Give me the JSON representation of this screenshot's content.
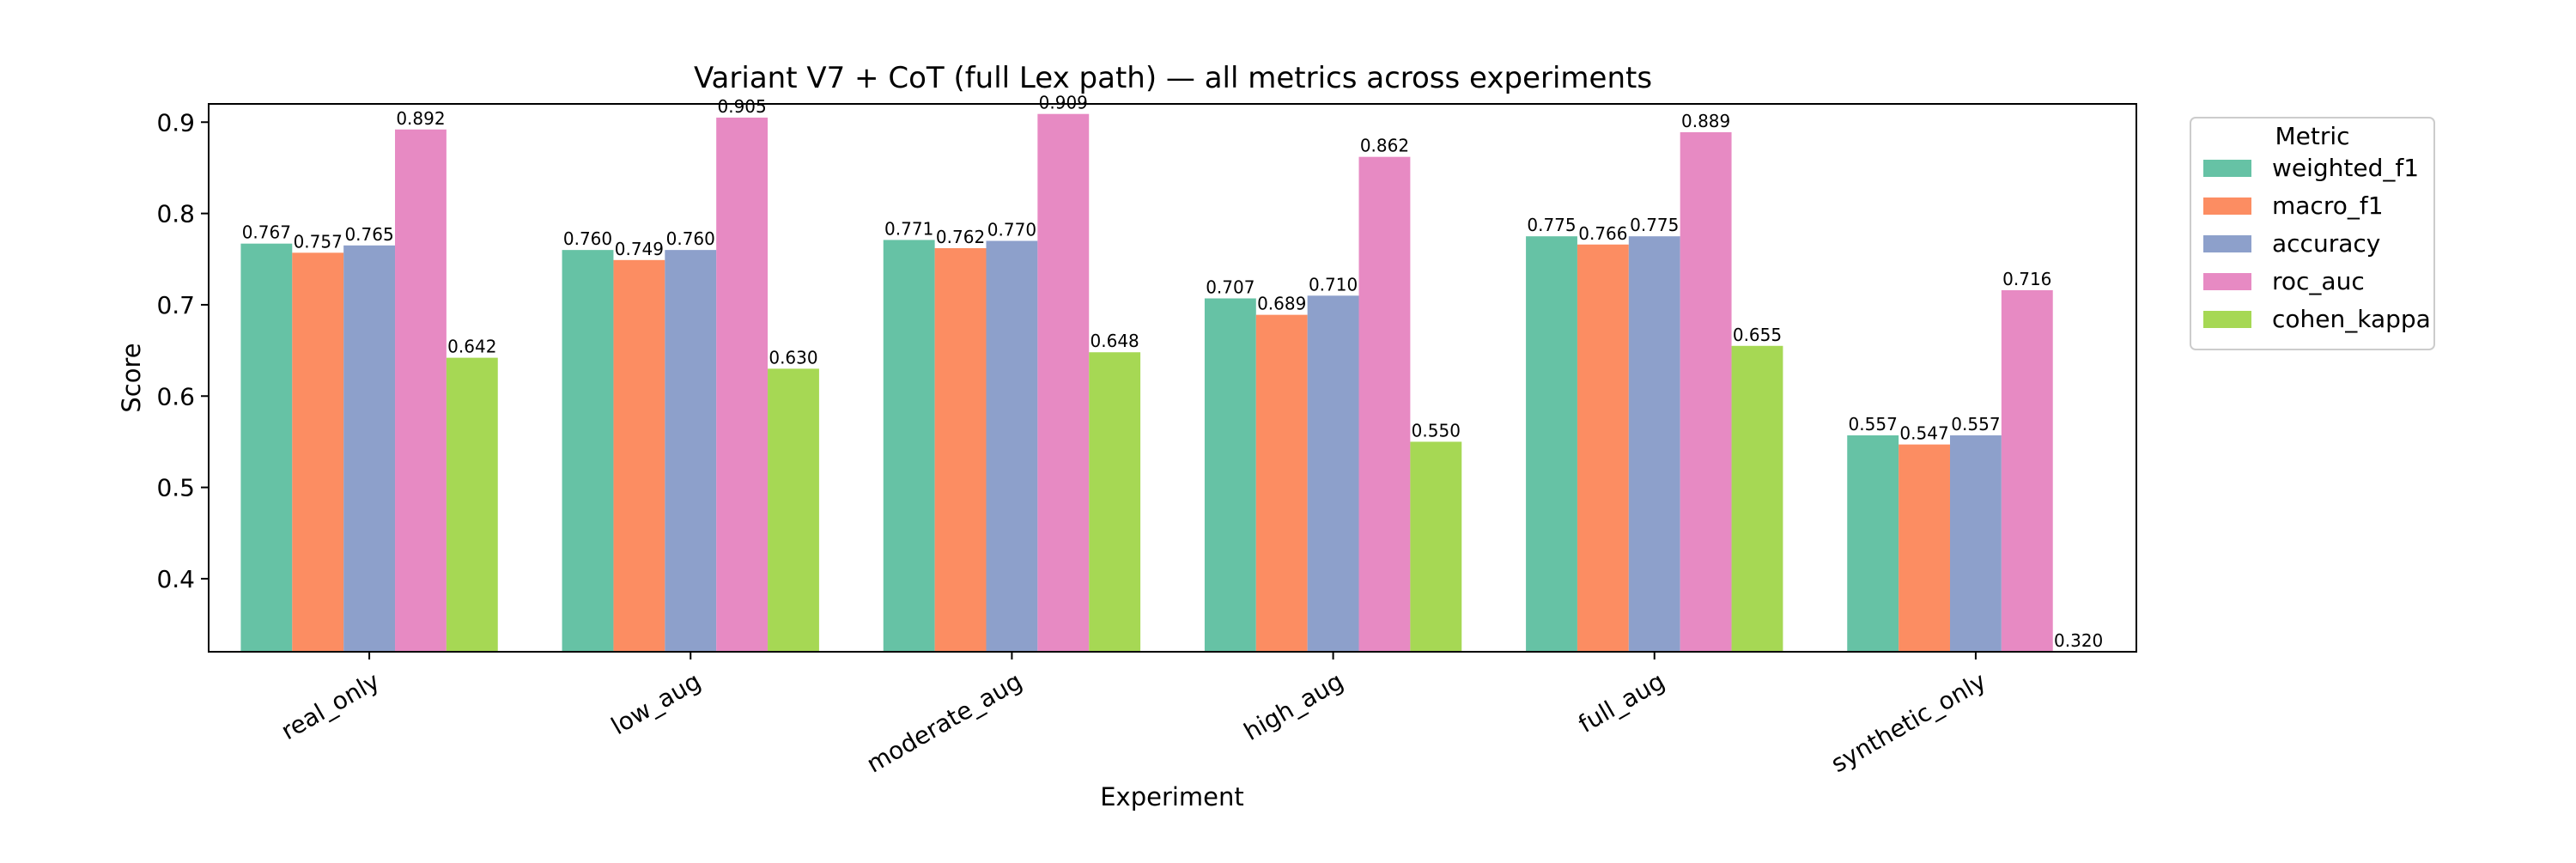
{
  "chart_data": {
    "type": "bar",
    "title": "Variant V7 + CoT (full Lex path) — all metrics across experiments",
    "xlabel": "Experiment",
    "ylabel": "Score",
    "ylim": [
      0.32,
      0.92
    ],
    "yticks": [
      "0.4",
      "0.5",
      "0.6",
      "0.7",
      "0.8",
      "0.9"
    ],
    "grid": false,
    "legend": {
      "title": "Metric",
      "placement": "outside-top-right"
    },
    "categories": [
      "real_only",
      "low_aug",
      "moderate_aug",
      "high_aug",
      "full_aug",
      "synthetic_only"
    ],
    "series": [
      {
        "name": "weighted_f1",
        "color": "#66c2a5",
        "values": [
          0.767,
          0.76,
          0.771,
          0.707,
          0.775,
          0.557
        ]
      },
      {
        "name": "macro_f1",
        "color": "#fc8d62",
        "values": [
          0.757,
          0.749,
          0.762,
          0.689,
          0.766,
          0.547
        ]
      },
      {
        "name": "accuracy",
        "color": "#8da0cb",
        "values": [
          0.765,
          0.76,
          0.77,
          0.71,
          0.775,
          0.557
        ]
      },
      {
        "name": "roc_auc",
        "color": "#e78ac3",
        "values": [
          0.892,
          0.905,
          0.909,
          0.862,
          0.889,
          0.716
        ]
      },
      {
        "name": "cohen_kappa",
        "color": "#a6d854",
        "values": [
          0.642,
          0.63,
          0.648,
          0.55,
          0.655,
          0.32
        ]
      }
    ]
  }
}
